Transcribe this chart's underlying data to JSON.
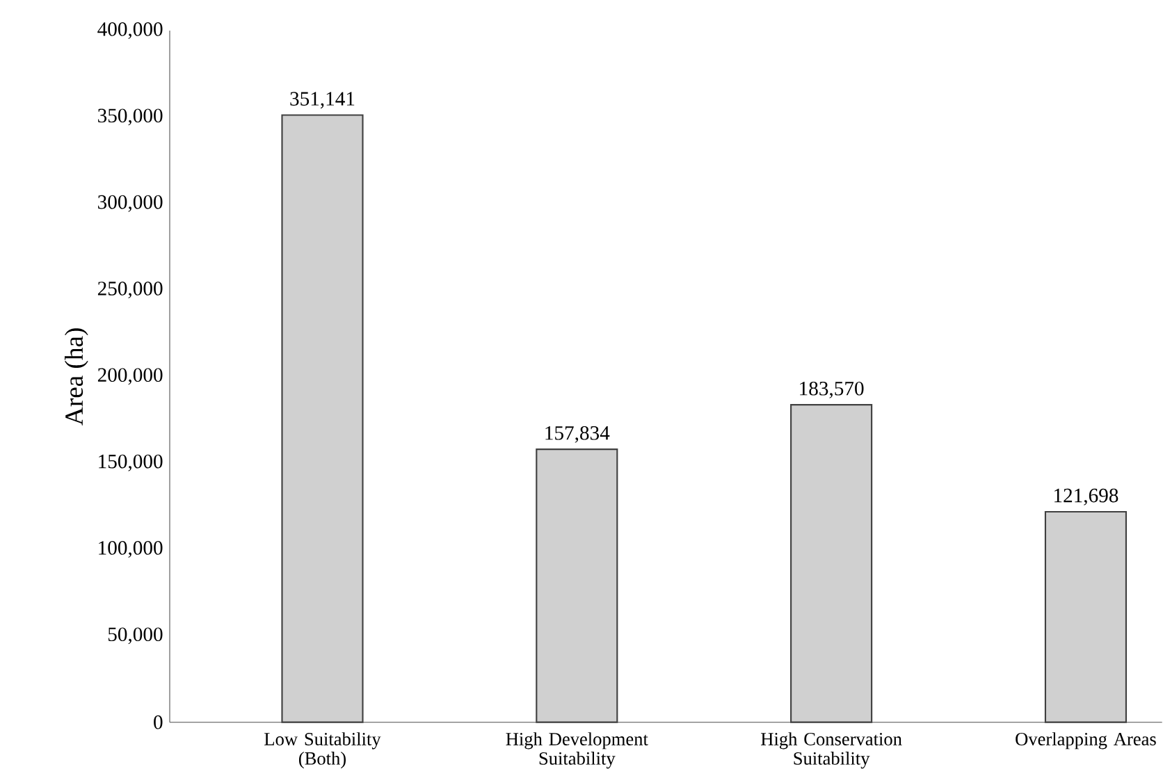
{
  "chart_data": {
    "type": "bar",
    "ylabel": "Area (ha)",
    "categories": [
      "Low Suitability (Both)",
      "High Development Suitability",
      "High Conservation Suitability",
      "Overlapping Areas"
    ],
    "values": [
      351141,
      157834,
      183570,
      121698
    ],
    "value_labels": [
      "351,141",
      "157,834",
      "183,570",
      "121,698"
    ],
    "color": "#d0d0d0",
    "ylim": [
      0,
      400000
    ],
    "yticks": [
      {
        "value": 0,
        "label": "0"
      },
      {
        "value": 50000,
        "label": "50,000"
      },
      {
        "value": 100000,
        "label": "100,000"
      },
      {
        "value": 150000,
        "label": "150,000"
      },
      {
        "value": 200000,
        "label": "200,000"
      },
      {
        "value": 250000,
        "label": "250,000"
      },
      {
        "value": 300000,
        "label": "300,000"
      },
      {
        "value": 350000,
        "label": "350,000"
      },
      {
        "value": 400000,
        "label": "400,000"
      }
    ],
    "grid": false
  }
}
